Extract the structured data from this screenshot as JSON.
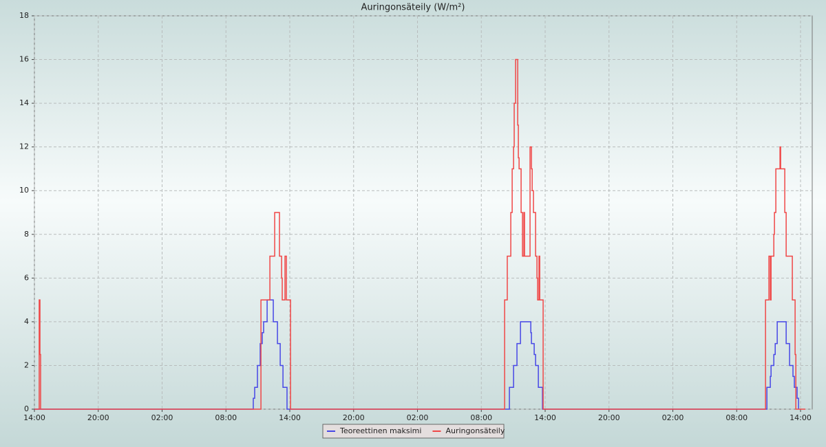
{
  "chart_data": {
    "type": "step",
    "title": "Auringonsäteily (W/m²)",
    "xlim": [
      0,
      73.1
    ],
    "ylim": [
      0,
      18
    ],
    "xticks": [
      {
        "value": 0,
        "label": "14:00"
      },
      {
        "value": 6,
        "label": "20:00"
      },
      {
        "value": 12,
        "label": "02:00"
      },
      {
        "value": 18,
        "label": "08:00"
      },
      {
        "value": 24,
        "label": "14:00"
      },
      {
        "value": 30,
        "label": "20:00"
      },
      {
        "value": 36,
        "label": "02:00"
      },
      {
        "value": 42,
        "label": "08:00"
      },
      {
        "value": 48,
        "label": "14:00"
      },
      {
        "value": 54,
        "label": "20:00"
      },
      {
        "value": 60,
        "label": "02:00"
      },
      {
        "value": 66,
        "label": "08:00"
      },
      {
        "value": 72,
        "label": "14:00"
      }
    ],
    "yticks": [
      0,
      2,
      4,
      6,
      8,
      10,
      12,
      14,
      16,
      18
    ],
    "grid": true,
    "legend": "bottom",
    "series": [
      {
        "name": "Teoreettinen maksimi",
        "color": "#4646e6",
        "x": [
          0,
          20.57,
          20.7,
          20.96,
          21.22,
          21.41,
          21.54,
          21.87,
          22.45,
          22.84,
          23.1,
          23.36,
          23.74,
          44.64,
          45.03,
          45.35,
          45.68,
          46.65,
          46.71,
          46.97,
          47.1,
          47.36,
          47.75,
          68.84,
          69.16,
          69.23,
          69.49,
          69.62,
          69.81,
          70.65,
          70.97,
          71.29,
          71.42,
          71.68,
          71.81
        ],
        "values": [
          0,
          0.5,
          1,
          2,
          3,
          3.5,
          4,
          5,
          4,
          3,
          2,
          1,
          0,
          1,
          2,
          3,
          4,
          3.5,
          3,
          2.5,
          2,
          1,
          0,
          1,
          1.5,
          2,
          2.5,
          3,
          4,
          3,
          2,
          1.5,
          1,
          0.5,
          0
        ]
      },
      {
        "name": "Auringonsäteily",
        "color": "#f04646",
        "x": [
          0,
          0.45,
          0.52,
          0.58,
          21.29,
          22.13,
          22.58,
          23.03,
          23.23,
          23.29,
          23.55,
          23.68,
          24.07,
          44.19,
          44.44,
          44.77,
          44.9,
          45.03,
          45.09,
          45.22,
          45.42,
          45.48,
          45.55,
          45.74,
          45.87,
          46.0,
          46.06,
          46.58,
          46.71,
          46.78,
          46.9,
          47.1,
          47.23,
          47.29,
          47.42,
          47.49,
          47.81,
          68.71,
          69.03,
          69.16,
          69.23,
          69.49,
          69.55,
          69.68,
          70.07,
          70.13,
          70.52,
          70.65,
          71.23,
          71.49,
          71.56,
          72.46
        ],
        "values": [
          0,
          5,
          2.5,
          0,
          5,
          7,
          9,
          7,
          6,
          5,
          7,
          5,
          0,
          5,
          7,
          9,
          11,
          12,
          14,
          16,
          13,
          11.5,
          11,
          9,
          7,
          9,
          7,
          12,
          11,
          10,
          9,
          7,
          6,
          5,
          7,
          5,
          0,
          5,
          7,
          5,
          7,
          8,
          9,
          11,
          12,
          11,
          9,
          7,
          5,
          2.5,
          0,
          0
        ]
      }
    ]
  }
}
